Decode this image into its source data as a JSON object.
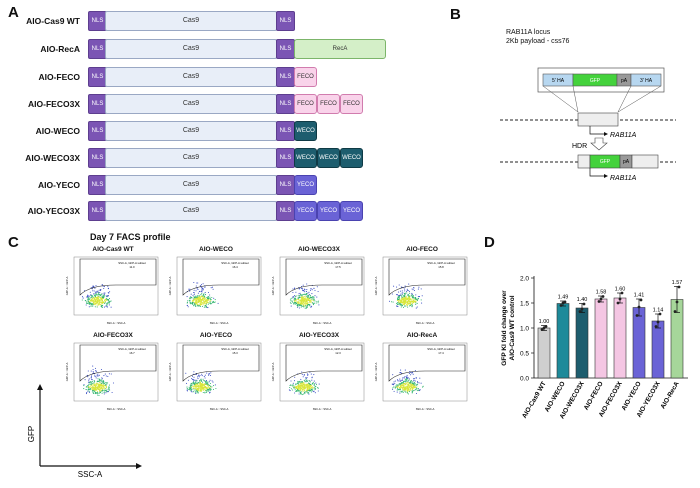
{
  "panels": {
    "a": "A",
    "b": "B",
    "c": "C",
    "d": "D"
  },
  "panel_a": {
    "constructs": [
      {
        "label": "AIO-Cas9 WT",
        "nls1": "NLS",
        "cas9": "Cas9",
        "nls2": "NLS",
        "fusions": []
      },
      {
        "label": "AIO-RecA",
        "nls1": "NLS",
        "cas9": "Cas9",
        "nls2": "NLS",
        "fusions": [
          "RecA"
        ],
        "fusion_color": "#d4efc8",
        "fusion_border": "#7cb56a",
        "fusion_text": "#333"
      },
      {
        "label": "AIO-FECO",
        "nls1": "NLS",
        "cas9": "Cas9",
        "nls2": "NLS",
        "fusions": [
          "FECO"
        ],
        "fusion_color": "#f9d3ea",
        "fusion_border": "#d17cae",
        "fusion_text": "#333"
      },
      {
        "label": "AIO-FECO3X",
        "nls1": "NLS",
        "cas9": "Cas9",
        "nls2": "NLS",
        "fusions": [
          "FECO",
          "FECO",
          "FECO"
        ],
        "fusion_color": "#f9d3ea",
        "fusion_border": "#d17cae",
        "fusion_text": "#333"
      },
      {
        "label": "AIO-WECO",
        "nls1": "NLS",
        "cas9": "Cas9",
        "nls2": "NLS",
        "fusions": [
          "WECO"
        ],
        "fusion_color": "#1d5d6e",
        "fusion_border": "#0f3a45",
        "fusion_text": "#ffffff"
      },
      {
        "label": "AIO-WECO3X",
        "nls1": "NLS",
        "cas9": "Cas9",
        "nls2": "NLS",
        "fusions": [
          "WECO",
          "WECO",
          "WECO"
        ],
        "fusion_color": "#1d5d6e",
        "fusion_border": "#0f3a45",
        "fusion_text": "#ffffff"
      },
      {
        "label": "AIO-YECO",
        "nls1": "NLS",
        "cas9": "Cas9",
        "nls2": "NLS",
        "fusions": [
          "YECO"
        ],
        "fusion_color": "#6a63d6",
        "fusion_border": "#4a43b0",
        "fusion_text": "#ffffff"
      },
      {
        "label": "AIO-YECO3X",
        "nls1": "NLS",
        "cas9": "Cas9",
        "nls2": "NLS",
        "fusions": [
          "YECO",
          "YECO",
          "YECO"
        ],
        "fusion_color": "#6a63d6",
        "fusion_border": "#4a43b0",
        "fusion_text": "#ffffff"
      }
    ]
  },
  "panel_b": {
    "title_line1": "RAB11A locus",
    "title_line2": "2Kb payload - css76",
    "hdr_label": "HDR",
    "gene_label_top": "RAB11A",
    "gene_label_bottom": "RAB11A",
    "template": {
      "left_ha": "5' HA",
      "gfp": "GFP",
      "pa": "pA",
      "right_ha": "3' HA"
    },
    "result": {
      "gfp": "GFP",
      "pa": "pA"
    }
  },
  "panel_c": {
    "title": "Day 7 FACS profile",
    "y_axis": "GFP",
    "x_axis": "SSC-A",
    "gate_label": "SSC-A, GFP-A subset",
    "plot_y_label": "GFP-A :: GFP-A",
    "plot_x_label": "SSC-A :: SSC-A",
    "plots": [
      {
        "title": "AIO-Cas9 WT",
        "gate_value": "11.0"
      },
      {
        "title": "AIO-WECO",
        "gate_value": "16.4"
      },
      {
        "title": "AIO-WECO3X",
        "gate_value": "17.5"
      },
      {
        "title": "AIO-FECO",
        "gate_value": "15.8"
      },
      {
        "title": "AIO-FECO3X",
        "gate_value": "16.7"
      },
      {
        "title": "AIO-YECO",
        "gate_value": "15.3"
      },
      {
        "title": "AIO-YECO3X",
        "gate_value": "12.3"
      },
      {
        "title": "AIO-RecA",
        "gate_value": "17.4"
      }
    ]
  },
  "chart_data": {
    "type": "bar",
    "title": "",
    "ylabel": "GFP KI fold change over AIO-Cas9 WT control",
    "xlabel": "",
    "ylim": [
      0,
      2.0
    ],
    "yticks": [
      "0.0",
      "0.5",
      "1.0",
      "1.5",
      "2.0"
    ],
    "categories": [
      "AIO-Cas9 WT",
      "AIO-WECO",
      "AIO-WECO3X",
      "AIO-FECO",
      "AIO-FECO3X",
      "AIO-YECO",
      "AIO-YECO3X",
      "AIO-RecA"
    ],
    "values": [
      1.0,
      1.49,
      1.4,
      1.58,
      1.6,
      1.41,
      1.14,
      1.57
    ],
    "value_labels": [
      "1.00",
      "1.49",
      "1.40",
      "1.58",
      "1.60",
      "1.41",
      "1.14",
      "1.57"
    ],
    "errors": [
      0.05,
      0.05,
      0.09,
      0.06,
      0.1,
      0.17,
      0.14,
      0.26
    ],
    "points": [
      [
        0.97,
        1.0,
        1.03
      ],
      [
        1.45,
        1.5,
        1.52
      ],
      [
        1.33,
        1.38,
        1.48
      ],
      [
        1.53,
        1.58,
        1.63
      ],
      [
        1.5,
        1.58,
        1.7
      ],
      [
        1.25,
        1.42,
        1.56
      ],
      [
        1.03,
        1.12,
        1.28
      ],
      [
        1.33,
        1.52,
        1.82
      ]
    ],
    "colors": [
      "#cfcfcf",
      "#1e8a9a",
      "#1d5d6e",
      "#f4c6e3",
      "#f4c6e3",
      "#6a63d6",
      "#6a63d6",
      "#a6d69a"
    ]
  }
}
